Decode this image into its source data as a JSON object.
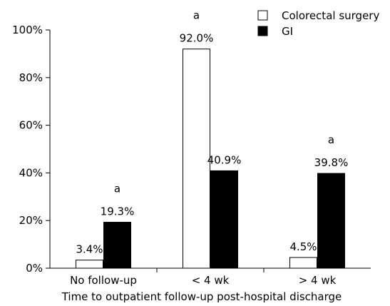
{
  "chart_data": {
    "type": "bar",
    "xlabel": "Time to outpatient follow-up post-hospital discharge",
    "ylabel": "",
    "ylim": [
      0,
      100
    ],
    "yticks": [
      0,
      20,
      40,
      60,
      80,
      100
    ],
    "ytick_labels": [
      "0%",
      "20%",
      "40%",
      "60%",
      "80%",
      "100%"
    ],
    "categories": [
      "No follow-up",
      "< 4 wk",
      "> 4 wk"
    ],
    "series": [
      {
        "name": "Colorectal surgery",
        "color": "#ffffff",
        "values": [
          3.4,
          92.0,
          4.5
        ],
        "labels": [
          "3.4%",
          "92.0%",
          "4.5%"
        ],
        "sig": [
          "",
          "a",
          ""
        ]
      },
      {
        "name": "GI",
        "color": "#000000",
        "values": [
          19.3,
          40.9,
          39.8
        ],
        "labels": [
          "19.3%",
          "40.9%",
          "39.8%"
        ],
        "sig": [
          "a",
          "",
          "a"
        ]
      }
    ],
    "legend_position": "top-right",
    "grid": false
  }
}
